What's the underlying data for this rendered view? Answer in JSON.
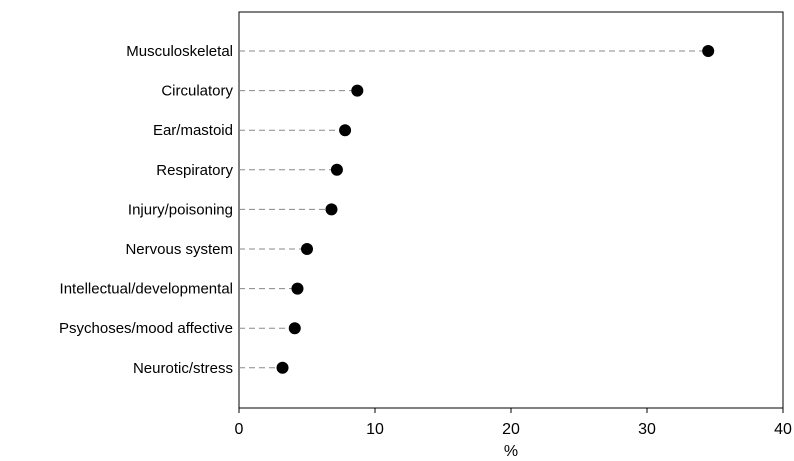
{
  "chart_data": {
    "type": "scatter",
    "style": "dot-plot with dashed leader lines",
    "categories": [
      "Musculoskeletal",
      "Circulatory",
      "Ear/mastoid",
      "Respiratory",
      "Injury/poisoning",
      "Nervous system",
      "Intellectual/developmental",
      "Psychoses/mood affective",
      "Neurotic/stress"
    ],
    "values": [
      34.5,
      8.7,
      7.8,
      7.2,
      6.8,
      5.0,
      4.3,
      4.1,
      3.2
    ],
    "xlabel": "%",
    "ylabel": "",
    "xlim": [
      0,
      40
    ],
    "xticks": [
      0,
      10,
      20,
      30,
      40
    ],
    "grid": false,
    "legend": "none",
    "colors": {
      "marker": "#000000",
      "leader": "#888888",
      "axis": "#000000"
    }
  }
}
